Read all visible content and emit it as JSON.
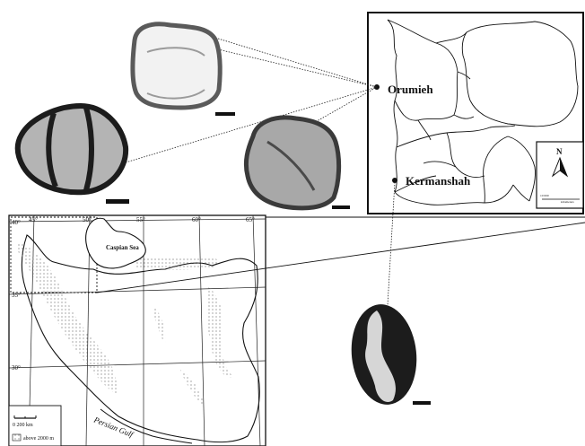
{
  "inset_map": {
    "cities": [
      {
        "name": "Orumieh"
      },
      {
        "name": "Kermanshah"
      }
    ],
    "north_label": "N",
    "scale_label_left": "10 000",
    "scale_label_right": "kilometers"
  },
  "main_map": {
    "caspian_label": "Caspian Sea",
    "gulf_label": "Persian Gulf",
    "lat_labels": [
      "40°",
      "35°",
      "30°"
    ],
    "lon_labels": [
      "45°",
      "50°",
      "55°",
      "60°",
      "65°"
    ],
    "scale_label": "0     200   km",
    "legend_label": "above 2000 m"
  },
  "pollen_grains": [
    {
      "shape": "rounded-square",
      "shade": "light"
    },
    {
      "shape": "elliptic-dark-ends",
      "shade": "dark"
    },
    {
      "shape": "rounded-square",
      "shade": "medium"
    },
    {
      "shape": "oval-dark-bands",
      "shade": "dark"
    }
  ],
  "colors": {
    "ink": "#111111",
    "grain_light": "#dcdcdc",
    "grain_medium": "#9c9c9c",
    "grain_dark": "#1c1c1c"
  }
}
